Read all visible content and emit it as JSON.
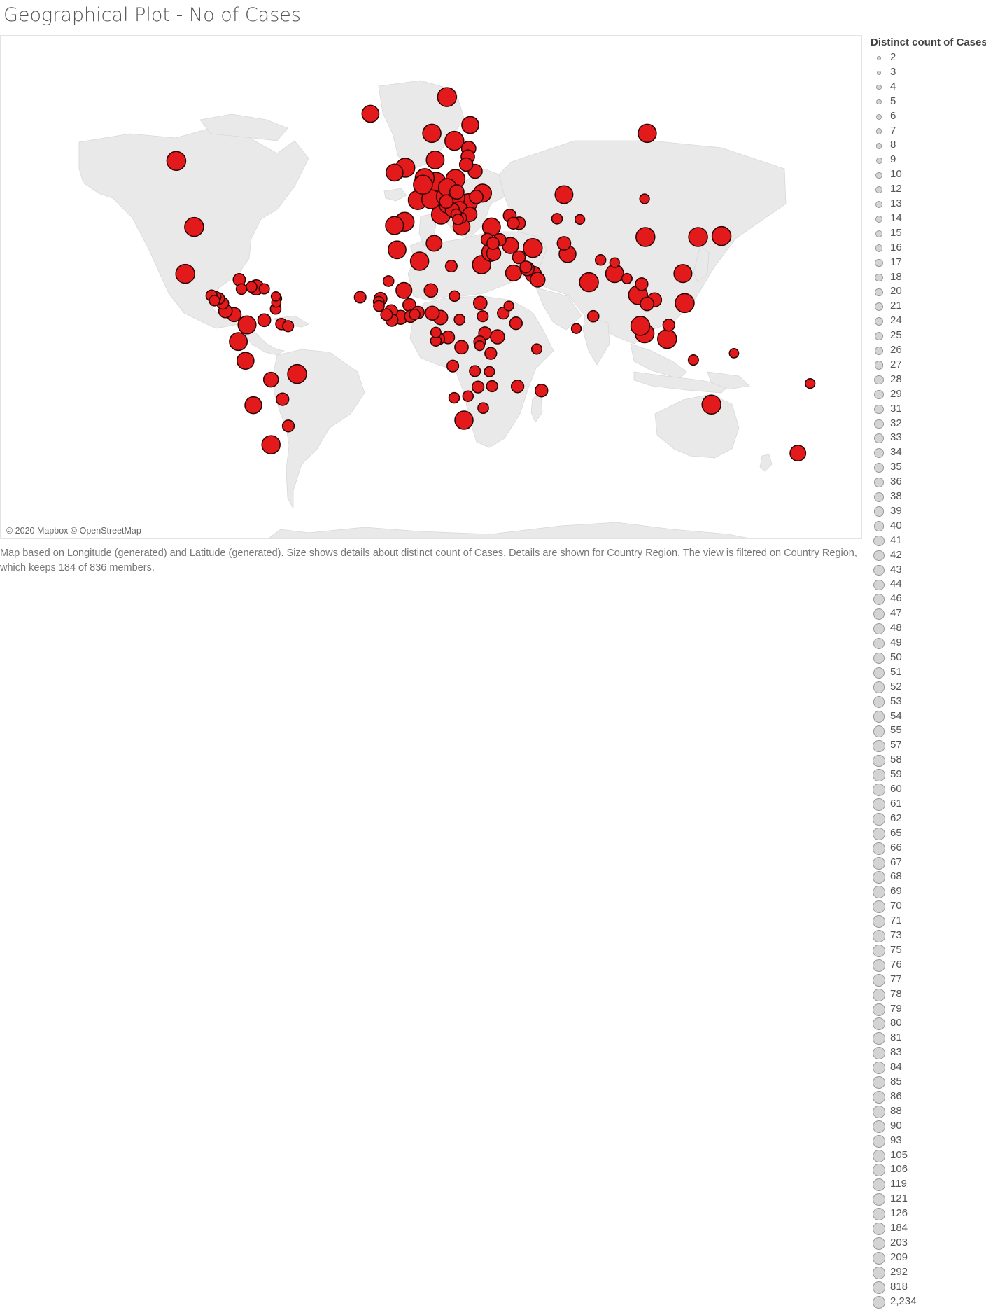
{
  "title": "Geographical Plot - No of Cases",
  "attribution": "© 2020 Mapbox © OpenStreetMap",
  "caption": "Map based on Longitude (generated) and Latitude (generated).  Size shows details about distinct count of Cases.  Details are shown for Country Region. The view is filtered on Country Region, which keeps 184 of 836 members.",
  "legend": {
    "title": "Distinct count of Cases",
    "items": [
      "2",
      "3",
      "4",
      "5",
      "6",
      "7",
      "8",
      "9",
      "10",
      "12",
      "13",
      "14",
      "15",
      "16",
      "17",
      "18",
      "20",
      "21",
      "24",
      "25",
      "26",
      "27",
      "28",
      "29",
      "31",
      "32",
      "33",
      "34",
      "35",
      "36",
      "38",
      "39",
      "40",
      "41",
      "42",
      "43",
      "44",
      "46",
      "47",
      "48",
      "49",
      "50",
      "51",
      "52",
      "53",
      "54",
      "55",
      "57",
      "58",
      "59",
      "60",
      "61",
      "62",
      "65",
      "66",
      "67",
      "68",
      "69",
      "70",
      "71",
      "73",
      "75",
      "76",
      "77",
      "78",
      "79",
      "80",
      "81",
      "83",
      "84",
      "85",
      "86",
      "88",
      "90",
      "93",
      "105",
      "106",
      "119",
      "121",
      "126",
      "184",
      "203",
      "209",
      "292",
      "818",
      "2,234"
    ]
  },
  "colors": {
    "mark_fill": "#e31a1c",
    "mark_stroke": "#2b0000",
    "land": "#e9e9e9",
    "legend_fill": "#d4d4d4"
  },
  "chart_data": {
    "type": "scatter",
    "encoding": "size = distinct count of Cases",
    "points": [
      {
        "lon": -106,
        "lat": 56,
        "v": 292
      },
      {
        "lon": -98,
        "lat": 39,
        "v": 818
      },
      {
        "lon": -102,
        "lat": 23.6,
        "v": 184
      },
      {
        "lon": -90.2,
        "lat": 15.7,
        "v": 35
      },
      {
        "lon": -88.5,
        "lat": 15.2,
        "v": 36
      },
      {
        "lon": -87,
        "lat": 14.6,
        "v": 40
      },
      {
        "lon": -88.9,
        "lat": 13.8,
        "v": 30
      },
      {
        "lon": -85.2,
        "lat": 12.8,
        "v": 42
      },
      {
        "lon": -84,
        "lat": 9.9,
        "v": 60
      },
      {
        "lon": -80.1,
        "lat": 8.5,
        "v": 66
      },
      {
        "lon": -77.8,
        "lat": 21.5,
        "v": 46
      },
      {
        "lon": -76.8,
        "lat": 18.1,
        "v": 30
      },
      {
        "lon": -72.3,
        "lat": 18.9,
        "v": 33
      },
      {
        "lon": -70.2,
        "lat": 18.7,
        "v": 80
      },
      {
        "lon": -66.6,
        "lat": 18.2,
        "v": 28
      },
      {
        "lon": -61.2,
        "lat": 13.1,
        "v": 21
      },
      {
        "lon": -61.0,
        "lat": 14.6,
        "v": 24
      },
      {
        "lon": -61.4,
        "lat": 15.4,
        "v": 21
      },
      {
        "lon": -61.5,
        "lat": 10.7,
        "v": 32
      },
      {
        "lon": -66.6,
        "lat": 6.4,
        "v": 51
      },
      {
        "lon": -74.3,
        "lat": 4.6,
        "v": 121
      },
      {
        "lon": -58.9,
        "lat": 4.9,
        "v": 38
      },
      {
        "lon": -55.9,
        "lat": 4.1,
        "v": 34
      },
      {
        "lon": -78.2,
        "lat": -1.8,
        "v": 119
      },
      {
        "lon": -75.0,
        "lat": -9.2,
        "v": 106
      },
      {
        "lon": -51.9,
        "lat": -14.2,
        "v": 203
      },
      {
        "lon": -63.6,
        "lat": -16.3,
        "v": 75
      },
      {
        "lon": -71.5,
        "lat": -25.5,
        "v": 105
      },
      {
        "lon": -58.4,
        "lat": -23.4,
        "v": 48
      },
      {
        "lon": -63.6,
        "lat": -38.4,
        "v": 126
      },
      {
        "lon": -55.8,
        "lat": -32.5,
        "v": 42
      },
      {
        "lon": -19,
        "lat": 64.9,
        "v": 106
      },
      {
        "lon": 15.3,
        "lat": 67.5,
        "v": 184
      },
      {
        "lon": 8.5,
        "lat": 61.5,
        "v": 126
      },
      {
        "lon": 25.7,
        "lat": 63,
        "v": 106
      },
      {
        "lon": 25.0,
        "lat": 58.6,
        "v": 70
      },
      {
        "lon": 24.6,
        "lat": 56.9,
        "v": 60
      },
      {
        "lon": 23.9,
        "lat": 55.2,
        "v": 58
      },
      {
        "lon": 18.6,
        "lat": 60.1,
        "v": 184
      },
      {
        "lon": 27.9,
        "lat": 53.7,
        "v": 66
      },
      {
        "lon": 10.0,
        "lat": 56.2,
        "v": 119
      },
      {
        "lon": -8.2,
        "lat": 53.4,
        "v": 106
      },
      {
        "lon": -3.4,
        "lat": 54.5,
        "v": 292
      },
      {
        "lon": 5.3,
        "lat": 52.1,
        "v": 209
      },
      {
        "lon": 4.5,
        "lat": 50.5,
        "v": 203
      },
      {
        "lon": 10.4,
        "lat": 51.2,
        "v": 292
      },
      {
        "lon": 19.1,
        "lat": 51.9,
        "v": 184
      },
      {
        "lon": 2.2,
        "lat": 46.6,
        "v": 2234
      },
      {
        "lon": 8.2,
        "lat": 46.8,
        "v": 209
      },
      {
        "lon": 14.6,
        "lat": 47.5,
        "v": 126
      },
      {
        "lon": 15.5,
        "lat": 49.8,
        "v": 121
      },
      {
        "lon": 19.7,
        "lat": 48.7,
        "v": 70
      },
      {
        "lon": 19.5,
        "lat": 47.2,
        "v": 105
      },
      {
        "lon": 24.9,
        "lat": 45.9,
        "v": 119
      },
      {
        "lon": 31.2,
        "lat": 48.4,
        "v": 121
      },
      {
        "lon": 28.4,
        "lat": 47.4,
        "v": 60
      },
      {
        "lon": 12.6,
        "lat": 42.6,
        "v": 818
      },
      {
        "lon": 14.99,
        "lat": 46.2,
        "v": 60
      },
      {
        "lon": 15.2,
        "lat": 45.1,
        "v": 75
      },
      {
        "lon": 17.7,
        "lat": 43.9,
        "v": 66
      },
      {
        "lon": 21.0,
        "lat": 44.0,
        "v": 90
      },
      {
        "lon": 19.4,
        "lat": 42.7,
        "v": 30
      },
      {
        "lon": 20.2,
        "lat": 41.2,
        "v": 30
      },
      {
        "lon": 21.7,
        "lat": 41.6,
        "v": 32
      },
      {
        "lon": 25.5,
        "lat": 42.7,
        "v": 70
      },
      {
        "lon": 21.8,
        "lat": 39.1,
        "v": 105
      },
      {
        "lon": -3.7,
        "lat": 40.5,
        "v": 292
      },
      {
        "lon": -8.2,
        "lat": 39.4,
        "v": 121
      },
      {
        "lon": 35.2,
        "lat": 39.0,
        "v": 119
      },
      {
        "lon": 33.4,
        "lat": 35.1,
        "v": 48
      },
      {
        "lon": 35.9,
        "lat": 33.9,
        "v": 46
      },
      {
        "lon": 38.9,
        "lat": 35.0,
        "v": 50
      },
      {
        "lon": 34.9,
        "lat": 31.0,
        "v": 121
      },
      {
        "lon": 36.2,
        "lat": 30.6,
        "v": 66
      },
      {
        "lon": 43.4,
        "lat": 42.3,
        "v": 52
      },
      {
        "lon": 45.0,
        "lat": 40.1,
        "v": 42
      },
      {
        "lon": 47.6,
        "lat": 40.1,
        "v": 48
      },
      {
        "lon": 43.7,
        "lat": 33.2,
        "v": 93
      },
      {
        "lon": 53.7,
        "lat": 32.4,
        "v": 203
      },
      {
        "lon": 45.1,
        "lat": 23.9,
        "v": 90
      },
      {
        "lon": 47.5,
        "lat": 29.3,
        "v": 51
      },
      {
        "lon": 51.2,
        "lat": 25.4,
        "v": 66
      },
      {
        "lon": 50.6,
        "lat": 26.0,
        "v": 42
      },
      {
        "lon": 54.0,
        "lat": 23.4,
        "v": 93
      },
      {
        "lon": 55.9,
        "lat": 21.5,
        "v": 75
      },
      {
        "lon": 67.7,
        "lat": 48.0,
        "v": 119
      },
      {
        "lon": 64.6,
        "lat": 41.4,
        "v": 30
      },
      {
        "lon": 74.8,
        "lat": 41.2,
        "v": 24
      },
      {
        "lon": 67.7,
        "lat": 33.9,
        "v": 60
      },
      {
        "lon": 69.3,
        "lat": 30.4,
        "v": 105
      },
      {
        "lon": 78.9,
        "lat": 20.6,
        "v": 209
      },
      {
        "lon": 84.1,
        "lat": 28.4,
        "v": 31
      },
      {
        "lon": 90.4,
        "lat": 27.5,
        "v": 24
      },
      {
        "lon": 90.4,
        "lat": 23.7,
        "v": 121
      },
      {
        "lon": 95.9,
        "lat": 21.9,
        "v": 28
      },
      {
        "lon": 80.8,
        "lat": 7.9,
        "v": 38
      },
      {
        "lon": 73.2,
        "lat": 3.2,
        "v": 24
      },
      {
        "lon": 105.0,
        "lat": 61.5,
        "v": 126
      },
      {
        "lon": 103.8,
        "lat": 46.9,
        "v": 24
      },
      {
        "lon": 104.2,
        "lat": 35.9,
        "v": 292
      },
      {
        "lon": 127.8,
        "lat": 35.9,
        "v": 209
      },
      {
        "lon": 138.3,
        "lat": 36.2,
        "v": 292
      },
      {
        "lon": 121.0,
        "lat": 23.7,
        "v": 121
      },
      {
        "lon": 108.3,
        "lat": 14.1,
        "v": 66
      },
      {
        "lon": 100.9,
        "lat": 15.9,
        "v": 203
      },
      {
        "lon": 104.9,
        "lat": 12.6,
        "v": 60
      },
      {
        "lon": 102.5,
        "lat": 19.9,
        "v": 48
      },
      {
        "lon": 101.9,
        "lat": 4.2,
        "v": 203
      },
      {
        "lon": 103.8,
        "lat": 1.35,
        "v": 209
      },
      {
        "lon": 121.8,
        "lat": 12.9,
        "v": 184
      },
      {
        "lon": 114.7,
        "lat": 4.5,
        "v": 42
      },
      {
        "lon": 113.9,
        "lat": -0.8,
        "v": 209
      },
      {
        "lon": 125.7,
        "lat": -8.9,
        "v": 28
      },
      {
        "lon": 143.9,
        "lat": -6.3,
        "v": 21
      },
      {
        "lon": 133.8,
        "lat": -25.3,
        "v": 292
      },
      {
        "lon": 172.5,
        "lat": -40.9,
        "v": 88
      },
      {
        "lon": 178.0,
        "lat": -17.7,
        "v": 24
      },
      {
        "lon": 3.0,
        "lat": 28.0,
        "v": 126
      },
      {
        "lon": 9.5,
        "lat": 33.9,
        "v": 88
      },
      {
        "lon": -7.1,
        "lat": 31.8,
        "v": 119
      },
      {
        "lon": 17.2,
        "lat": 26.3,
        "v": 40
      },
      {
        "lon": 30.8,
        "lat": 26.8,
        "v": 126
      },
      {
        "lon": -10.9,
        "lat": 21.0,
        "v": 32
      },
      {
        "lon": -23.6,
        "lat": 15.1,
        "v": 40
      },
      {
        "lon": -14.5,
        "lat": 14.5,
        "v": 53
      },
      {
        "lon": -15.3,
        "lat": 13.4,
        "v": 32
      },
      {
        "lon": -15.2,
        "lat": 11.8,
        "v": 32
      },
      {
        "lon": -9.7,
        "lat": 9.9,
        "v": 48
      },
      {
        "lon": -11.8,
        "lat": 8.5,
        "v": 40
      },
      {
        "lon": -9.4,
        "lat": 6.4,
        "v": 46
      },
      {
        "lon": -5.5,
        "lat": 7.5,
        "v": 66
      },
      {
        "lon": -1.0,
        "lat": 7.9,
        "v": 46
      },
      {
        "lon": 0.8,
        "lat": 8.6,
        "v": 30
      },
      {
        "lon": 2.3,
        "lat": 9.3,
        "v": 48
      },
      {
        "lon": -1.6,
        "lat": 12.2,
        "v": 52
      },
      {
        "lon": -4.0,
        "lat": 17.6,
        "v": 90
      },
      {
        "lon": 8.1,
        "lat": 17.6,
        "v": 60
      },
      {
        "lon": 8.7,
        "lat": 9.1,
        "v": 66
      },
      {
        "lon": 18.7,
        "lat": 15.5,
        "v": 31
      },
      {
        "lon": 30.2,
        "lat": 12.9,
        "v": 60
      },
      {
        "lon": 10.3,
        "lat": 1.7,
        "v": 28
      },
      {
        "lon": 12.4,
        "lat": 7.4,
        "v": 70
      },
      {
        "lon": 20.9,
        "lat": 6.6,
        "v": 32
      },
      {
        "lon": 31.3,
        "lat": 7.9,
        "v": 34
      },
      {
        "lon": 40.5,
        "lat": 9.1,
        "v": 42
      },
      {
        "lon": 43.0,
        "lat": 11.8,
        "v": 24
      },
      {
        "lon": 46.2,
        "lat": 5.2,
        "v": 48
      },
      {
        "lon": 37.9,
        "lat": 0.0,
        "v": 66
      },
      {
        "lon": 32.3,
        "lat": 1.4,
        "v": 48
      },
      {
        "lon": 29.9,
        "lat": -1.9,
        "v": 40
      },
      {
        "lon": 29.9,
        "lat": -3.4,
        "v": 24
      },
      {
        "lon": 34.9,
        "lat": -6.4,
        "v": 42
      },
      {
        "lon": 15.8,
        "lat": -0.2,
        "v": 52
      },
      {
        "lon": 21.8,
        "lat": -4.0,
        "v": 60
      },
      {
        "lon": 11.6,
        "lat": -0.8,
        "v": 40
      },
      {
        "lon": 10.3,
        "lat": -1.5,
        "v": 32
      },
      {
        "lon": 17.9,
        "lat": -11.2,
        "v": 40
      },
      {
        "lon": 27.8,
        "lat": -13.1,
        "v": 34
      },
      {
        "lon": 34.3,
        "lat": -13.3,
        "v": 28
      },
      {
        "lon": 35.5,
        "lat": -18.7,
        "v": 35
      },
      {
        "lon": 29.2,
        "lat": -19.0,
        "v": 42
      },
      {
        "lon": 18.5,
        "lat": -22.9,
        "v": 30
      },
      {
        "lon": 24.7,
        "lat": -22.3,
        "v": 30
      },
      {
        "lon": 31.5,
        "lat": -26.5,
        "v": 32
      },
      {
        "lon": 22.9,
        "lat": -30.6,
        "v": 126
      },
      {
        "lon": 46.9,
        "lat": -18.8,
        "v": 48
      },
      {
        "lon": 57.6,
        "lat": -20.3,
        "v": 50
      },
      {
        "lon": 55.5,
        "lat": -4.7,
        "v": 28
      }
    ]
  }
}
